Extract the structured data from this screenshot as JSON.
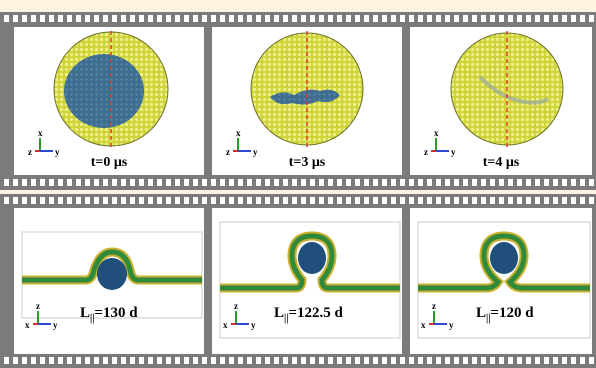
{
  "top_panels": [
    {
      "time_label": "t=0 μs"
    },
    {
      "time_label": "t=3 μs"
    },
    {
      "time_label": "t=4 μs"
    }
  ],
  "bottom_panels": [
    {
      "l_symbol": "L",
      "l_sub": "||",
      "l_value": "=130 d"
    },
    {
      "l_symbol": "L",
      "l_sub": "||",
      "l_value": "=122.5 d"
    },
    {
      "l_symbol": "L",
      "l_sub": "||",
      "l_value": "=120 d"
    }
  ],
  "axes_top": {
    "vertical": "x",
    "out": "z",
    "horizontal": "y"
  },
  "axes_bottom": {
    "vertical": "z",
    "out": "x",
    "horizontal": "y"
  },
  "colors": {
    "lipid_yellow": "#d8dc3a",
    "lipid_green": "#3a8a3a",
    "domain_blue": "#2c5a7e",
    "cut_line": "#e23b2a",
    "film_gray": "#7b7b7b"
  }
}
